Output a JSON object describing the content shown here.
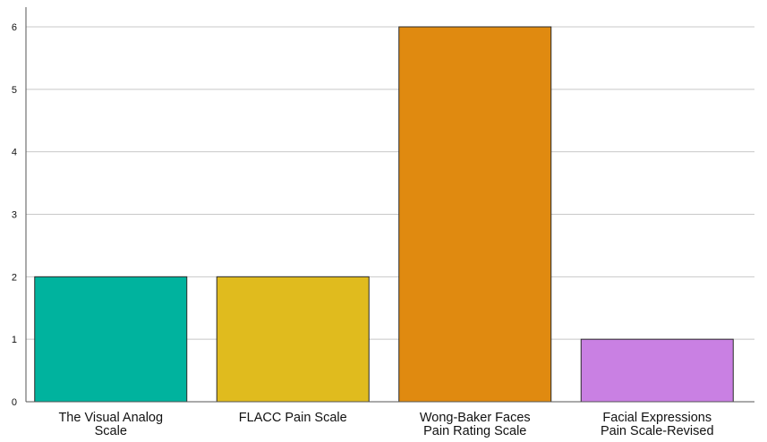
{
  "chart_data": {
    "type": "bar",
    "categories": [
      [
        "The Visual Analog",
        "Scale"
      ],
      [
        "FLACC Pain Scale"
      ],
      [
        "Wong-Baker Faces",
        "Pain Rating Scale"
      ],
      [
        "Facial Expressions",
        "Pain Scale-Revised"
      ]
    ],
    "values": [
      2,
      2,
      6,
      1
    ],
    "colors": [
      "#00b39e",
      "#e0bb1e",
      "#e08a10",
      "#c980e3"
    ],
    "yticks": [
      "0",
      "1",
      "2",
      "3",
      "4",
      "5",
      "6"
    ],
    "ylim": [
      0,
      6
    ],
    "grid": true,
    "title": "",
    "xlabel": "",
    "ylabel": ""
  }
}
